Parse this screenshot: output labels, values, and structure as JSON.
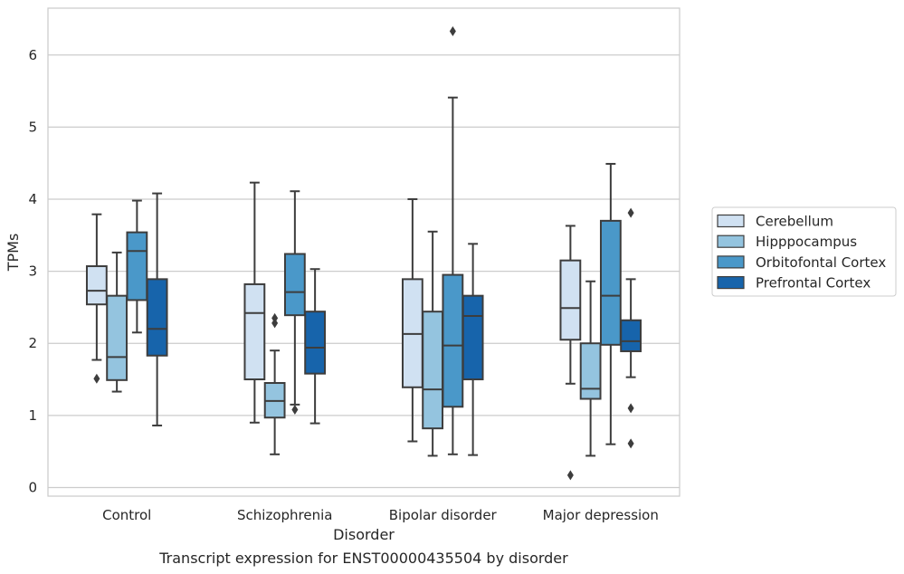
{
  "chart_data": {
    "type": "box",
    "title": "",
    "caption": "Transcript expression for ENST00000435504 by disorder",
    "xlabel": "Disorder",
    "ylabel": "TPMs",
    "ylim": [
      -0.12,
      6.65
    ],
    "yticks": [
      0,
      1,
      2,
      3,
      4,
      5,
      6
    ],
    "grid": "horizontal",
    "legend_position": "right",
    "categories": [
      "Control",
      "Schizophrenia",
      "Bipolar disorder",
      "Major depression"
    ],
    "series": [
      {
        "name": "Cerebellum",
        "color": "#d0e1f2",
        "boxes": [
          {
            "whisker_low": 1.77,
            "q1": 2.54,
            "median": 2.73,
            "q3": 3.07,
            "whisker_high": 3.79,
            "outliers": [
              1.51
            ]
          },
          {
            "whisker_low": 0.9,
            "q1": 1.5,
            "median": 2.42,
            "q3": 2.82,
            "whisker_high": 4.23,
            "outliers": []
          },
          {
            "whisker_low": 0.64,
            "q1": 1.39,
            "median": 2.13,
            "q3": 2.89,
            "whisker_high": 4.0,
            "outliers": []
          },
          {
            "whisker_low": 1.44,
            "q1": 2.05,
            "median": 2.49,
            "q3": 3.15,
            "whisker_high": 3.63,
            "outliers": [
              0.17
            ]
          }
        ]
      },
      {
        "name": "Hipppocampus",
        "color": "#94c4df",
        "boxes": [
          {
            "whisker_low": 1.33,
            "q1": 1.49,
            "median": 1.81,
            "q3": 2.66,
            "whisker_high": 3.26,
            "outliers": []
          },
          {
            "whisker_low": 0.46,
            "q1": 0.97,
            "median": 1.2,
            "q3": 1.45,
            "whisker_high": 1.9,
            "outliers": [
              2.35,
              2.28
            ]
          },
          {
            "whisker_low": 0.44,
            "q1": 0.82,
            "median": 1.36,
            "q3": 2.44,
            "whisker_high": 3.55,
            "outliers": []
          },
          {
            "whisker_low": 0.44,
            "q1": 1.23,
            "median": 1.37,
            "q3": 2.0,
            "whisker_high": 2.86,
            "outliers": []
          }
        ]
      },
      {
        "name": "Orbitofontal Cortex",
        "color": "#4a98c9",
        "boxes": [
          {
            "whisker_low": 2.15,
            "q1": 2.6,
            "median": 3.28,
            "q3": 3.54,
            "whisker_high": 3.98,
            "outliers": []
          },
          {
            "whisker_low": 1.15,
            "q1": 2.39,
            "median": 2.71,
            "q3": 3.24,
            "whisker_high": 4.11,
            "outliers": [
              1.08
            ]
          },
          {
            "whisker_low": 0.46,
            "q1": 1.12,
            "median": 1.97,
            "q3": 2.95,
            "whisker_high": 5.41,
            "outliers": [
              6.33
            ]
          },
          {
            "whisker_low": 0.6,
            "q1": 1.98,
            "median": 2.66,
            "q3": 3.7,
            "whisker_high": 4.49,
            "outliers": []
          }
        ]
      },
      {
        "name": "Prefrontal Cortex",
        "color": "#1764ab",
        "boxes": [
          {
            "whisker_low": 0.86,
            "q1": 1.83,
            "median": 2.2,
            "q3": 2.89,
            "whisker_high": 4.08,
            "outliers": []
          },
          {
            "whisker_low": 0.89,
            "q1": 1.58,
            "median": 1.94,
            "q3": 2.44,
            "whisker_high": 3.03,
            "outliers": []
          },
          {
            "whisker_low": 0.45,
            "q1": 1.5,
            "median": 2.38,
            "q3": 2.66,
            "whisker_high": 3.38,
            "outliers": []
          },
          {
            "whisker_low": 1.53,
            "q1": 1.89,
            "median": 2.03,
            "q3": 2.32,
            "whisker_high": 2.89,
            "outliers": [
              3.81,
              1.1,
              0.61
            ]
          }
        ]
      }
    ]
  }
}
